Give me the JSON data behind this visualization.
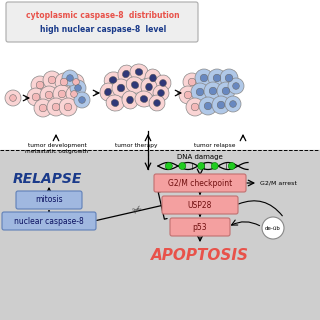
{
  "title_line1": "cytoplasmic caspase-8  distribution",
  "title_line2": "high nuclear caspase-8  level",
  "title_color1": "#e8524a",
  "title_color2": "#1a3a8a",
  "label_tumor_dev": "tumor development\nmetastatic outgrowth",
  "label_tumor_therapy": "tumor therapy",
  "label_tumor_relapse": "tumor relapse",
  "label_relapse": "RELAPSE",
  "label_mitosis": "mitosis",
  "label_nuclear_casp": "nuclear caspase-8",
  "label_dna_damage": "DNA damage",
  "label_g2m": "G2/M checkpoint",
  "label_usp28": "USP28",
  "label_p53": "p53",
  "label_g2m_arrest": "G2/M arrest",
  "label_de_ub": "de-üb",
  "label_apoptosis": "APOPTOSIS",
  "pink_box_color": "#f4a0a0",
  "blue_box_color": "#a0b8e0",
  "relapse_color": "#1a3a8a",
  "apoptosis_color": "#e8524a",
  "pink_cell": "#f4b8b8",
  "lpink_cell": "#fad4d4",
  "blue_cell": "#6888c0",
  "lblue_cell": "#b0c8e8",
  "dark_blue_nuc": "#303878"
}
